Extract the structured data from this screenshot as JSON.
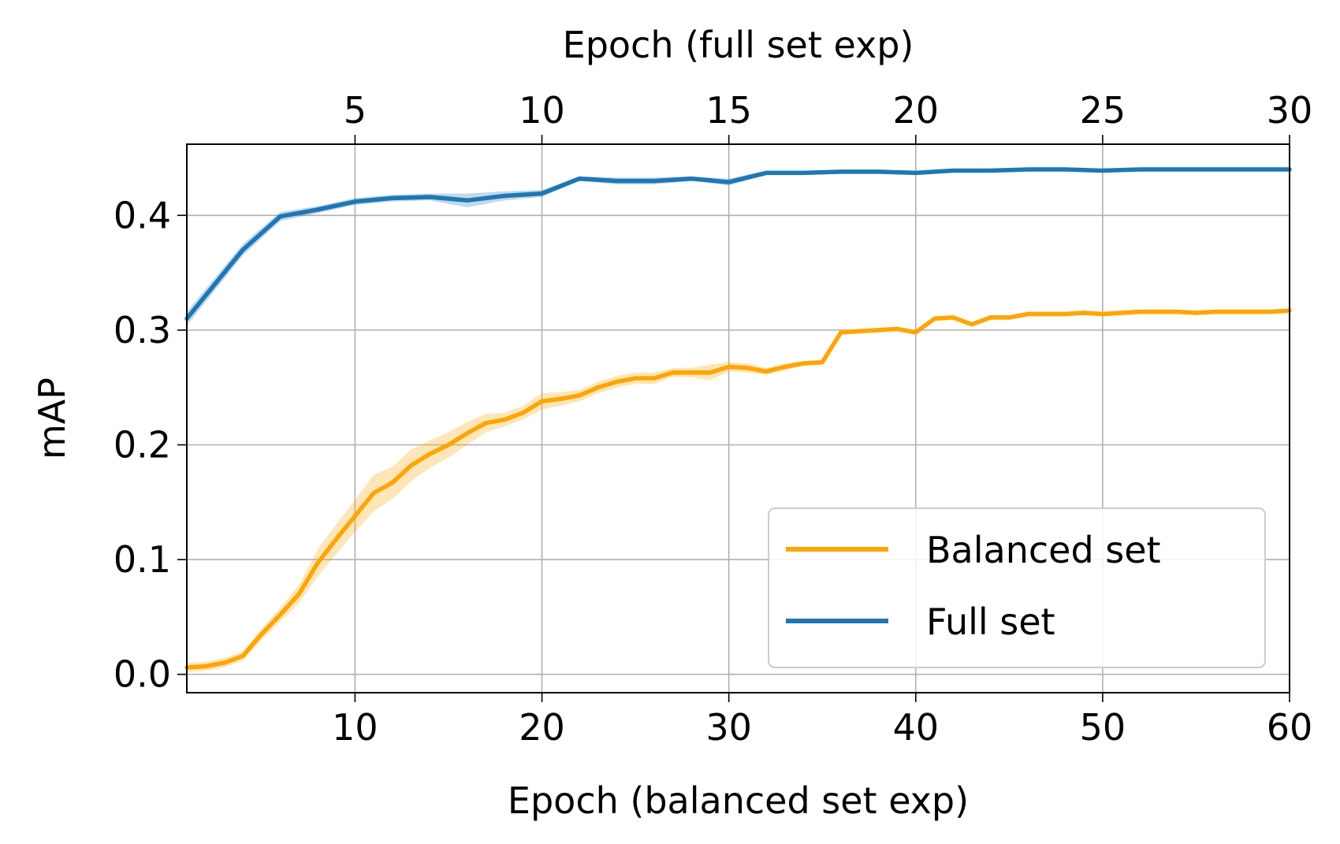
{
  "chart_data": {
    "type": "line",
    "ylabel": "mAP",
    "xlabel_bottom": "Epoch (balanced set exp)",
    "xlabel_top": "Epoch (full set exp)",
    "xlim_bottom": [
      1,
      60
    ],
    "xlim_top": [
      0.5,
      30
    ],
    "ylim": [
      -0.016,
      0.462
    ],
    "x_ticks_bottom": [
      10,
      20,
      30,
      40,
      50,
      60
    ],
    "x_ticks_top": [
      5,
      10,
      15,
      20,
      25,
      30
    ],
    "y_ticks": [
      0.0,
      0.1,
      0.2,
      0.3,
      0.4
    ],
    "y_tick_labels": [
      "0.0",
      "0.1",
      "0.2",
      "0.3",
      "0.4"
    ],
    "grid": true,
    "legend_position": "lower right",
    "series": [
      {
        "name": "Balanced set",
        "color": "#ffa500",
        "axis": "bottom",
        "x": [
          1,
          2,
          3,
          4,
          5,
          6,
          7,
          8,
          9,
          10,
          11,
          12,
          13,
          14,
          15,
          16,
          17,
          18,
          19,
          20,
          21,
          22,
          23,
          24,
          25,
          26,
          27,
          28,
          29,
          30,
          31,
          32,
          33,
          34,
          35,
          36,
          37,
          38,
          39,
          40,
          41,
          42,
          43,
          44,
          45,
          46,
          47,
          48,
          49,
          50,
          51,
          52,
          53,
          54,
          55,
          56,
          57,
          58,
          59,
          60
        ],
        "values": [
          0.006,
          0.007,
          0.01,
          0.016,
          0.035,
          0.052,
          0.07,
          0.097,
          0.118,
          0.138,
          0.158,
          0.167,
          0.182,
          0.192,
          0.2,
          0.21,
          0.219,
          0.222,
          0.228,
          0.238,
          0.24,
          0.243,
          0.25,
          0.255,
          0.258,
          0.258,
          0.263,
          0.263,
          0.263,
          0.268,
          0.267,
          0.264,
          0.268,
          0.271,
          0.272,
          0.298,
          0.299,
          0.3,
          0.301,
          0.298,
          0.31,
          0.311,
          0.305,
          0.311,
          0.311,
          0.314,
          0.314,
          0.314,
          0.315,
          0.314,
          0.315,
          0.316,
          0.316,
          0.316,
          0.315,
          0.316,
          0.316,
          0.316,
          0.316,
          0.317
        ],
        "band": [
          0.004,
          0.004,
          0.004,
          0.004,
          0.005,
          0.006,
          0.008,
          0.012,
          0.013,
          0.014,
          0.016,
          0.014,
          0.014,
          0.012,
          0.011,
          0.01,
          0.008,
          0.006,
          0.006,
          0.007,
          0.006,
          0.005,
          0.005,
          0.005,
          0.005,
          0.005,
          0.004,
          0.004,
          0.007,
          0.004,
          0.004,
          0.003,
          0.003,
          0.002,
          0.002,
          0.002,
          0.002,
          0.002,
          0.002,
          0.002,
          0.002,
          0.002,
          0.002,
          0.002,
          0.002,
          0.002,
          0.002,
          0.002,
          0.002,
          0.002,
          0.002,
          0.002,
          0.002,
          0.002,
          0.002,
          0.002,
          0.002,
          0.002,
          0.002,
          0.002
        ]
      },
      {
        "name": "Full set",
        "color": "#1f77b4",
        "axis": "top",
        "x": [
          0.5,
          2,
          3,
          4,
          5,
          6,
          7,
          8,
          9,
          10,
          11,
          12,
          13,
          14,
          15,
          16,
          17,
          18,
          19,
          20,
          21,
          22,
          23,
          24,
          25,
          26,
          27,
          28,
          29,
          30
        ],
        "values": [
          0.31,
          0.37,
          0.399,
          0.405,
          0.412,
          0.415,
          0.416,
          0.413,
          0.417,
          0.419,
          0.432,
          0.43,
          0.43,
          0.432,
          0.429,
          0.437,
          0.437,
          0.438,
          0.438,
          0.437,
          0.439,
          0.439,
          0.44,
          0.44,
          0.439,
          0.44,
          0.44,
          0.44,
          0.44,
          0.44
        ],
        "band": [
          0.006,
          0.005,
          0.004,
          0.003,
          0.003,
          0.003,
          0.003,
          0.006,
          0.004,
          0.003,
          0.002,
          0.003,
          0.003,
          0.002,
          0.003,
          0.002,
          0.001,
          0.001,
          0.001,
          0.001,
          0.001,
          0.001,
          0.001,
          0.001,
          0.001,
          0.001,
          0.001,
          0.001,
          0.001,
          0.001
        ]
      }
    ]
  }
}
